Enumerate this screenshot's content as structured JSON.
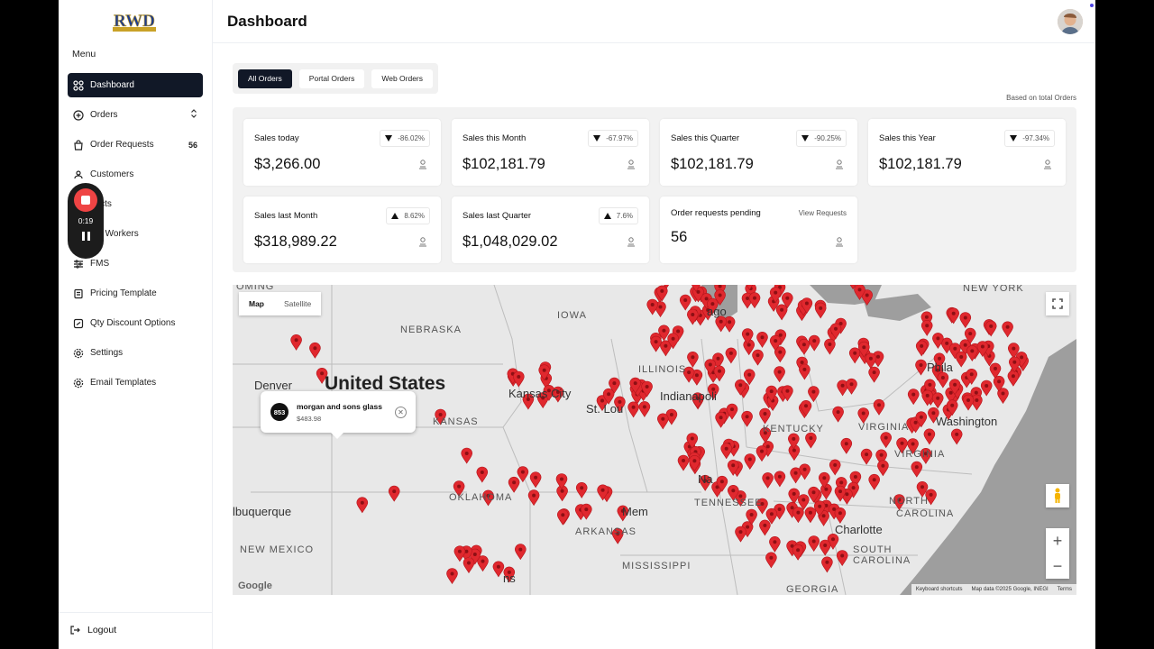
{
  "sidebar": {
    "menu_label": "Menu",
    "items": [
      {
        "label": "Dashboard",
        "icon": "grid-icon",
        "active": true,
        "badge": ""
      },
      {
        "label": "Orders",
        "icon": "plus-circle-icon",
        "badge": ""
      },
      {
        "label": "Order Requests",
        "icon": "bag-icon",
        "badge": "56"
      },
      {
        "label": "Customers",
        "icon": "users-icon",
        "badge": ""
      },
      {
        "label": "ducts",
        "icon": "box-icon",
        "badge": ""
      },
      {
        "label": "am Workers",
        "icon": "worker-icon",
        "badge": ""
      },
      {
        "label": "FMS",
        "icon": "sliders-icon",
        "badge": ""
      },
      {
        "label": "Pricing Template",
        "icon": "document-icon",
        "badge": ""
      },
      {
        "label": "Qty Discount Options",
        "icon": "tag-icon",
        "badge": ""
      },
      {
        "label": "Settings",
        "icon": "gear-icon",
        "badge": ""
      },
      {
        "label": "Email Templates",
        "icon": "gear-icon",
        "badge": ""
      }
    ],
    "logout_label": "Logout",
    "logo_text": "RWD"
  },
  "recorder": {
    "time": "0:19"
  },
  "header": {
    "title": "Dashboard"
  },
  "tabs": [
    {
      "label": "All Orders",
      "active": true
    },
    {
      "label": "Portal Orders",
      "active": false
    },
    {
      "label": "Web Orders",
      "active": false
    }
  ],
  "based_on": "Based on total Orders",
  "stats": [
    {
      "title": "Sales today",
      "value": "$3,266.00",
      "delta": "-86.02%",
      "trend": "down"
    },
    {
      "title": "Sales this Month",
      "value": "$102,181.79",
      "delta": "-67.97%",
      "trend": "down"
    },
    {
      "title": "Sales this Quarter",
      "value": "$102,181.79",
      "delta": "-90.25%",
      "trend": "down"
    },
    {
      "title": "Sales this Year",
      "value": "$102,181.79",
      "delta": "-97.34%",
      "trend": "down"
    },
    {
      "title": "Sales last Month",
      "value": "$318,989.22",
      "delta": "8.62%",
      "trend": "up"
    },
    {
      "title": "Sales last Quarter",
      "value": "$1,048,029.02",
      "delta": "7.6%",
      "trend": "up"
    }
  ],
  "pending": {
    "title": "Order requests pending",
    "value": "56",
    "link": "View Requests"
  },
  "map": {
    "type_labels": {
      "map": "Map",
      "satellite": "Satellite"
    },
    "labels": {
      "nebraska": "NEBRASKA",
      "iowa": "IOWA",
      "united_states": "United States",
      "denver": "Denver",
      "kansas_city": "Kansas City",
      "kansas": "KANSAS",
      "illinois": "ILLINOIS",
      "indianapolis": "Indianapoli",
      "st_louis": "St. Lou",
      "kentucky": "KENTUCKY",
      "virginia": "VIRGINIA",
      "w_virginia": "VIRGINIA",
      "philadelphia": "Phila",
      "washington": "Washington",
      "nashville": "Na",
      "tennessee": "TENNESSEE",
      "oklahoma": "OKLAHOMA",
      "albuquerque": "lbuquerque",
      "new_mexico": "NEW MEXICO",
      "memphis": "Mem",
      "arkansas": "ARKANSAS",
      "mississippi": "MISSISSIPPI",
      "north": "NORTH",
      "carolina": "CAROLINA",
      "charlotte": "Charlotte",
      "south": "SOUTH",
      "s_carolina": "CAROLINA",
      "georgia": "GEORGIA",
      "new_york": "NEW YORK",
      "ago": "ago",
      "ns": "ns",
      "oming": "OMING"
    },
    "info": {
      "number": "853",
      "name": "morgan and sons glass",
      "amount": "$483.98"
    },
    "footer": {
      "shortcuts": "Keyboard shortcuts",
      "data": "Map data ©2025 Google, INEGI",
      "terms": "Terms"
    },
    "google": "Google",
    "marker_color": "#e0282e"
  }
}
